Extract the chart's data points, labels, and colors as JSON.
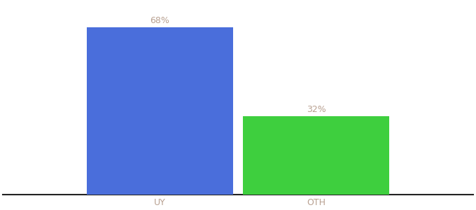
{
  "categories": [
    "UY",
    "OTH"
  ],
  "values": [
    68,
    32
  ],
  "bar_colors": [
    "#4a6edb",
    "#3ecf3e"
  ],
  "label_color": "#b8a090",
  "label_fontsize": 9,
  "xlabel_fontsize": 9,
  "xlabel_color": "#b8a090",
  "ylim": [
    0,
    78
  ],
  "background_color": "#ffffff",
  "spine_color": "#222222",
  "bar_width": 0.28,
  "x_positions": [
    0.35,
    0.65
  ]
}
